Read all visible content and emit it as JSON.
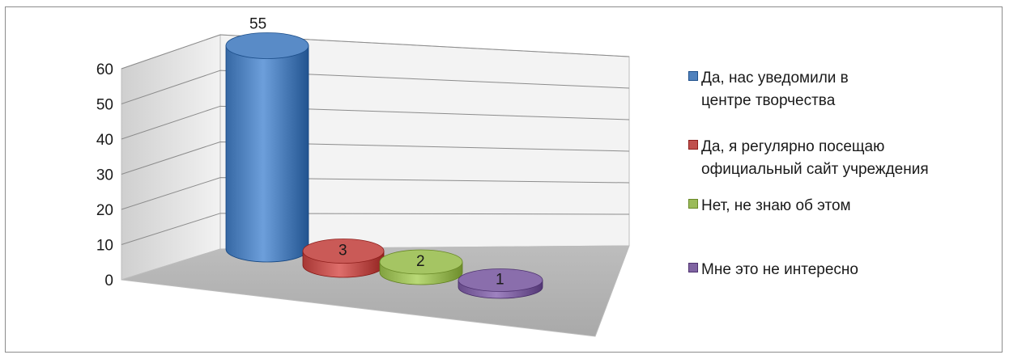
{
  "chart_data": {
    "type": "bar",
    "style": "3d-cylinder",
    "categories": [
      "Да, нас уведомили в центре творчества",
      "Да, я регулярно посещаю официальный сайт учреждения",
      "Нет, не знаю об этом",
      "Мне это не интересно"
    ],
    "values": [
      55,
      3,
      2,
      1
    ],
    "data_labels": [
      "55",
      "3",
      "2",
      "1"
    ],
    "colors": [
      "#4f81bd",
      "#c0504d",
      "#9bbb59",
      "#8064a2"
    ],
    "ylim": [
      0,
      60
    ],
    "yticks": [
      "0",
      "10",
      "20",
      "30",
      "40",
      "50",
      "60"
    ],
    "grid": true,
    "legend_position": "right",
    "title": "",
    "xlabel": "",
    "ylabel": ""
  }
}
